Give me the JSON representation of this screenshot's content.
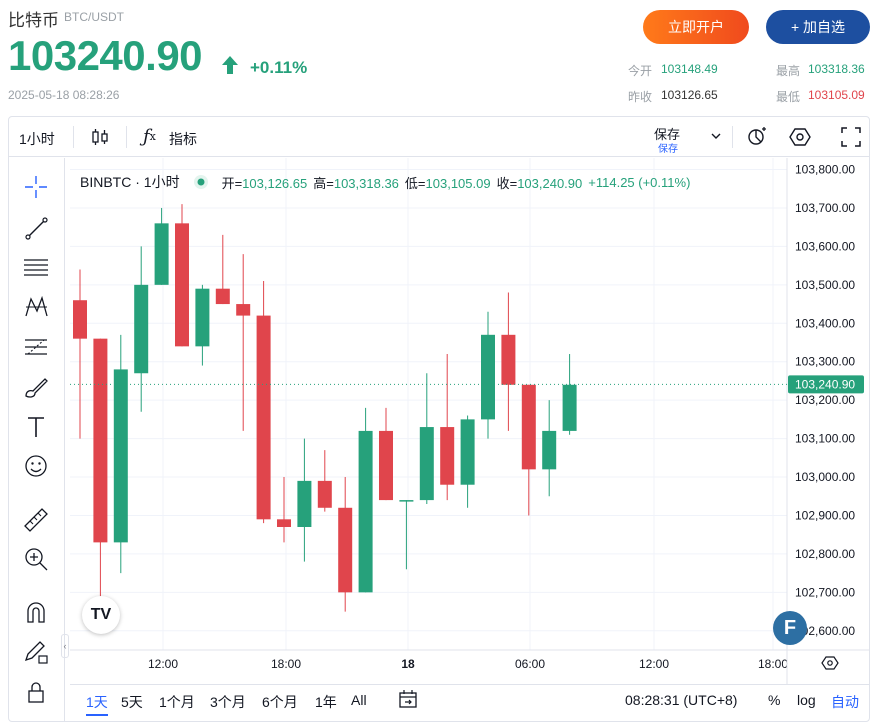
{
  "header": {
    "name": "比特币",
    "pair": "BTC/USDT",
    "price": "103240.90",
    "change": "+0.11%",
    "datetime": "2025-05-18 08:28:26",
    "open_account_label": "立即开户",
    "add_watch_label": "+ 加自选"
  },
  "stats": {
    "today_open_label": "今开",
    "today_open": "103148.49",
    "high_label": "最高",
    "high": "103318.36",
    "prev_close_label": "昨收",
    "prev_close": "103126.65",
    "low_label": "最低",
    "low": "103105.09"
  },
  "toolbar": {
    "interval": "1小时",
    "indicators_label": "指标",
    "save_label": "保存",
    "save_sub": "保存"
  },
  "legend": {
    "symbol": "BINBTC · 1小时",
    "open_label": "开=",
    "open": "103,126.65",
    "high_label": "高=",
    "high": "103,318.36",
    "low_label": "低=",
    "low": "103,105.09",
    "close_label": "收=",
    "close": "103,240.90",
    "change": "+114.25 (+0.11%)"
  },
  "colors": {
    "up": "#26a17b",
    "down": "#e0454c",
    "accent": "#2962ff",
    "watch": "#1d4fa0"
  },
  "chart_data": {
    "type": "candlestick",
    "y_ticks": [
      "103,800.00",
      "103,700.00",
      "103,600.00",
      "103,500.00",
      "103,400.00",
      "103,300.00",
      "103,200.00",
      "103,100.00",
      "103,000.00",
      "102,900.00",
      "102,800.00",
      "102,700.00",
      "102,600.00"
    ],
    "x_ticks": [
      "12:00",
      "18:00",
      "18",
      "06:00",
      "12:00",
      "18:00"
    ],
    "price_label": "103,240.90",
    "ylim": [
      102550,
      103830
    ],
    "candles": [
      {
        "o": 103460,
        "h": 103540,
        "l": 103100,
        "c": 103360
      },
      {
        "o": 103360,
        "h": 103350,
        "l": 102640,
        "c": 102830
      },
      {
        "o": 102830,
        "h": 103370,
        "l": 102750,
        "c": 103280
      },
      {
        "o": 103270,
        "h": 103600,
        "l": 103170,
        "c": 103500
      },
      {
        "o": 103500,
        "h": 103700,
        "l": 103500,
        "c": 103660
      },
      {
        "o": 103660,
        "h": 103710,
        "l": 103340,
        "c": 103340
      },
      {
        "o": 103340,
        "h": 103500,
        "l": 103290,
        "c": 103490
      },
      {
        "o": 103490,
        "h": 103630,
        "l": 103450,
        "c": 103450
      },
      {
        "o": 103450,
        "h": 103580,
        "l": 103120,
        "c": 103420
      },
      {
        "o": 103420,
        "h": 103510,
        "l": 102880,
        "c": 102890
      },
      {
        "o": 102890,
        "h": 103000,
        "l": 102830,
        "c": 102870
      },
      {
        "o": 102870,
        "h": 103100,
        "l": 102780,
        "c": 102990
      },
      {
        "o": 102990,
        "h": 103070,
        "l": 102910,
        "c": 102920
      },
      {
        "o": 102920,
        "h": 103000,
        "l": 102650,
        "c": 102700
      },
      {
        "o": 102700,
        "h": 103180,
        "l": 102700,
        "c": 103120
      },
      {
        "o": 103120,
        "h": 103180,
        "l": 102950,
        "c": 102940
      },
      {
        "o": 102940,
        "h": 102940,
        "l": 102760,
        "c": 102940
      },
      {
        "o": 102940,
        "h": 103270,
        "l": 102930,
        "c": 103130
      },
      {
        "o": 103130,
        "h": 103320,
        "l": 102940,
        "c": 102980
      },
      {
        "o": 102980,
        "h": 103160,
        "l": 102920,
        "c": 103150
      },
      {
        "o": 103150,
        "h": 103430,
        "l": 103100,
        "c": 103370
      },
      {
        "o": 103370,
        "h": 103480,
        "l": 103120,
        "c": 103240
      },
      {
        "o": 103240,
        "h": 103230,
        "l": 102900,
        "c": 103020
      },
      {
        "o": 103020,
        "h": 103200,
        "l": 102950,
        "c": 103120
      },
      {
        "o": 103120,
        "h": 103320,
        "l": 103110,
        "c": 103240
      }
    ]
  },
  "bottom": {
    "ranges": [
      "1天",
      "5天",
      "1个月",
      "3个月",
      "6个月",
      "1年",
      "All"
    ],
    "active_range": "1天",
    "clock": "08:28:31 (UTC+8)",
    "percent": "%",
    "log": "log",
    "auto": "自动"
  }
}
